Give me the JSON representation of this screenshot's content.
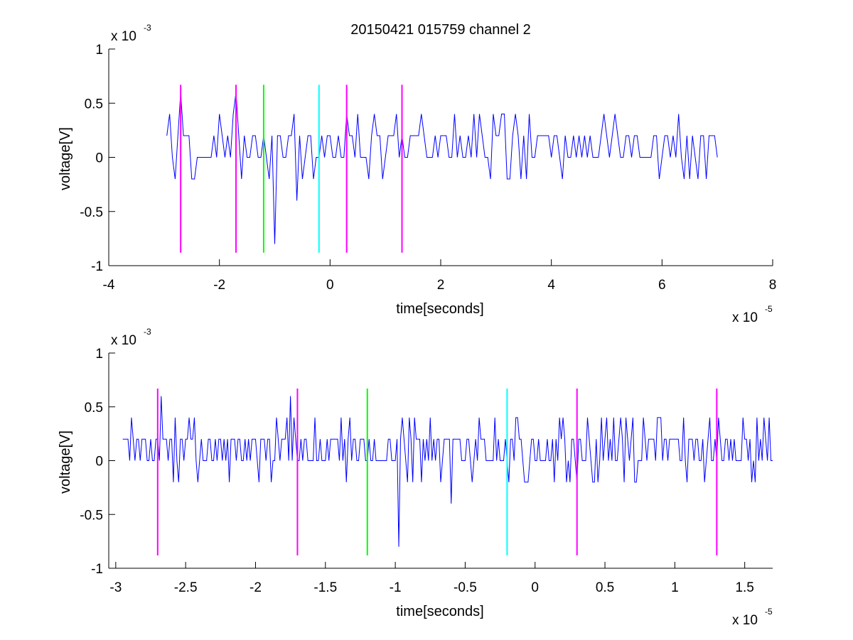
{
  "figure": {
    "title": "20150421 015759 channel 2"
  },
  "chart_data": [
    {
      "type": "line",
      "name": "top-panel",
      "title": "20150421 015759 channel 2",
      "xlabel": "time[seconds]",
      "ylabel": "voltage[V]",
      "x_multiplier_label": "x 10",
      "x_multiplier_exp": "-5",
      "y_multiplier_label": "x 10",
      "y_multiplier_exp": "-3",
      "xlim": [
        -4,
        8
      ],
      "ylim": [
        -1,
        1
      ],
      "xticks": [
        -4,
        -2,
        0,
        2,
        4,
        6,
        8
      ],
      "xtick_labels": [
        "-4",
        "-2",
        "0",
        "2",
        "4",
        "6",
        "8"
      ],
      "yticks": [
        -1,
        -0.5,
        0,
        0.5,
        1
      ],
      "ytick_labels": [
        "-1",
        "-0.5",
        "0",
        "0.5",
        "1"
      ],
      "grid": false,
      "signal": {
        "color": "#0000ff",
        "x_start": -2.95,
        "x_end": 7.0,
        "levels": [
          -0.2,
          0,
          0.2,
          0.4
        ],
        "description_values": "quantized noise mostly between 0 and 0.2, occasional spikes to 0.4 and dips to -0.2",
        "spikes": [
          {
            "x": -2.7,
            "y": 0.6
          },
          {
            "x": -1.7,
            "y": 0.6
          },
          {
            "x": -1.0,
            "y": -0.8
          },
          {
            "x": -0.6,
            "y": -0.4
          }
        ]
      },
      "markers": [
        {
          "x": -2.7,
          "color": "#ff00ff"
        },
        {
          "x": -1.7,
          "color": "#ff00ff"
        },
        {
          "x": -1.2,
          "color": "#00ff00"
        },
        {
          "x": -0.2,
          "color": "#00ffff"
        },
        {
          "x": 0.3,
          "color": "#ff00ff"
        },
        {
          "x": 1.3,
          "color": "#ff00ff"
        }
      ],
      "marker_ylim": [
        -0.88,
        0.67
      ]
    },
    {
      "type": "line",
      "name": "bottom-panel",
      "xlabel": "time[seconds]",
      "ylabel": "voltage[V]",
      "x_multiplier_label": "x 10",
      "x_multiplier_exp": "-5",
      "y_multiplier_label": "x 10",
      "y_multiplier_exp": "-3",
      "xlim": [
        -3.05,
        1.7
      ],
      "ylim": [
        -1,
        1
      ],
      "xticks": [
        -3,
        -2.5,
        -2,
        -1.5,
        -1,
        -0.5,
        0,
        0.5,
        1,
        1.5
      ],
      "xtick_labels": [
        "-3",
        "-2.5",
        "-2",
        "-1.5",
        "-1",
        "-0.5",
        "0",
        "0.5",
        "1",
        "1.5"
      ],
      "yticks": [
        -1,
        -0.5,
        0,
        0.5,
        1
      ],
      "ytick_labels": [
        "-1",
        "-0.5",
        "0",
        "0.5",
        "1"
      ],
      "grid": false,
      "signal": {
        "color": "#0000ff",
        "x_start": -2.95,
        "x_end": 1.7,
        "levels": [
          -0.2,
          0,
          0.2,
          0.4
        ],
        "spikes": [
          {
            "x": -2.68,
            "y": 0.6
          },
          {
            "x": -1.75,
            "y": 0.6
          },
          {
            "x": -0.98,
            "y": -0.8
          },
          {
            "x": -0.6,
            "y": -0.4
          }
        ]
      },
      "markers": [
        {
          "x": -2.7,
          "color": "#ff00ff"
        },
        {
          "x": -1.7,
          "color": "#ff00ff"
        },
        {
          "x": -1.2,
          "color": "#00ff00"
        },
        {
          "x": -0.2,
          "color": "#00ffff"
        },
        {
          "x": 0.3,
          "color": "#ff00ff"
        },
        {
          "x": 1.3,
          "color": "#ff00ff"
        }
      ],
      "marker_ylim": [
        -0.88,
        0.67
      ]
    }
  ]
}
